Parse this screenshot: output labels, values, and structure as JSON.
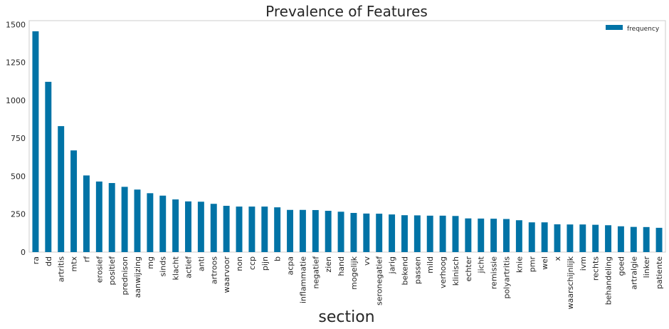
{
  "chart_data": {
    "type": "bar",
    "title": "Prevalence of Features",
    "xlabel": "section",
    "ylabel": "",
    "ylim": [
      0,
      1525
    ],
    "yticks": [
      0,
      250,
      500,
      750,
      1000,
      1250,
      1500
    ],
    "grid": false,
    "legend_position": "top-right",
    "bar_color": "#0173a6",
    "categories": [
      "ra",
      "dd",
      "artritis",
      "mtx",
      "rf",
      "erosief",
      "positief",
      "prednison",
      "aanwijzing",
      "mg",
      "sinds",
      "klacht",
      "actief",
      "anti",
      "artroos",
      "waarvoor",
      "non",
      "ccp",
      "pijn",
      "b",
      "acpa",
      "inflammatie",
      "negatief",
      "zien",
      "hand",
      "mogelijk",
      "vv",
      "seronegatief",
      "jarig",
      "bekend",
      "passen",
      "mild",
      "verhoog",
      "klinisch",
      "echter",
      "jicht",
      "remissie",
      "polyartritis",
      "knie",
      "pmr",
      "wel",
      "x",
      "waarschijnlijk",
      "ivm",
      "rechts",
      "behandeling",
      "goed",
      "artralgie",
      "linker",
      "patiente"
    ],
    "series": [
      {
        "name": "frequency",
        "values": [
          1455,
          1122,
          830,
          670,
          505,
          465,
          455,
          430,
          412,
          388,
          372,
          347,
          334,
          332,
          318,
          305,
          300,
          300,
          300,
          295,
          278,
          278,
          277,
          272,
          266,
          258,
          254,
          253,
          248,
          243,
          242,
          240,
          240,
          238,
          222,
          221,
          220,
          218,
          210,
          196,
          196,
          183,
          182,
          182,
          180,
          177,
          170,
          166,
          165,
          160
        ]
      }
    ]
  }
}
